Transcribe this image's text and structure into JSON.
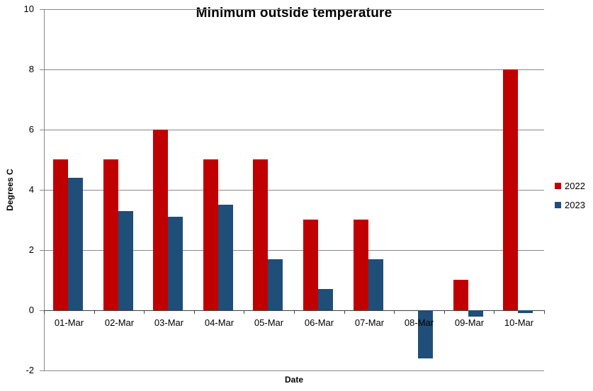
{
  "chart_data": {
    "type": "bar",
    "title": "Minimum outside temperature",
    "xlabel": "Date",
    "ylabel": "Degrees C",
    "categories": [
      "01-Mar",
      "02-Mar",
      "03-Mar",
      "04-Mar",
      "05-Mar",
      "06-Mar",
      "07-Mar",
      "08-Mar",
      "09-Mar",
      "10-Mar"
    ],
    "series": [
      {
        "name": "2022",
        "color": "#C00000",
        "values": [
          5,
          5,
          6,
          5,
          5,
          3,
          3,
          0,
          1,
          8
        ]
      },
      {
        "name": "2023",
        "color": "#1F4E79",
        "values": [
          4.4,
          3.3,
          3.1,
          3.5,
          1.7,
          0.7,
          1.7,
          -1.6,
          -0.2,
          -0.1
        ]
      }
    ],
    "ylim": [
      -2,
      10
    ],
    "ytick_interval": 2,
    "grid": true,
    "legend_position": "right",
    "colors": {
      "gridline": "#898989",
      "axis_line": "#898989",
      "zero_line": "#404040",
      "text": "#000000",
      "background": "#FFFFFF"
    }
  },
  "legend": {
    "items": [
      {
        "label": "2022",
        "color": "#C00000"
      },
      {
        "label": "2023",
        "color": "#1F4E79"
      }
    ]
  }
}
